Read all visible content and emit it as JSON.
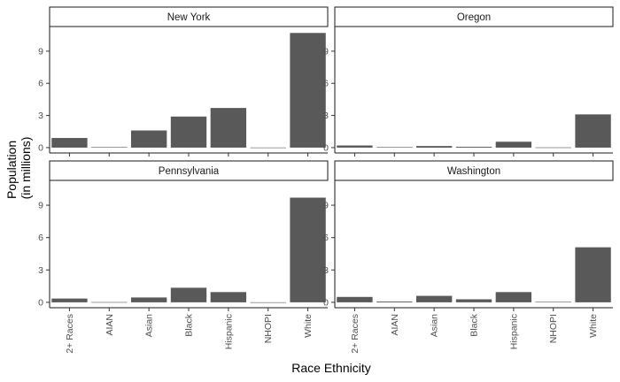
{
  "chart_data": {
    "type": "bar",
    "xlabel": "Race Ethnicity",
    "ylabel_lines": [
      "Population",
      "(in millions)"
    ],
    "categories": [
      "2+ Races",
      "AIAN",
      "Asian",
      "Black",
      "Hispanic",
      "NHOPI",
      "White"
    ],
    "yticks": [
      0,
      3,
      6,
      9
    ],
    "ylim": [
      -0.5,
      11.3
    ],
    "grid": false,
    "panels": [
      {
        "name": "New York",
        "values": [
          0.9,
          0.05,
          1.6,
          2.9,
          3.7,
          0.01,
          10.7
        ]
      },
      {
        "name": "Oregon",
        "values": [
          0.2,
          0.05,
          0.15,
          0.08,
          0.55,
          0.02,
          3.1
        ]
      },
      {
        "name": "Pennsylvania",
        "values": [
          0.35,
          0.02,
          0.45,
          1.35,
          0.95,
          0.005,
          9.7
        ]
      },
      {
        "name": "Washington",
        "values": [
          0.5,
          0.08,
          0.6,
          0.28,
          0.95,
          0.05,
          5.1
        ]
      }
    ]
  }
}
